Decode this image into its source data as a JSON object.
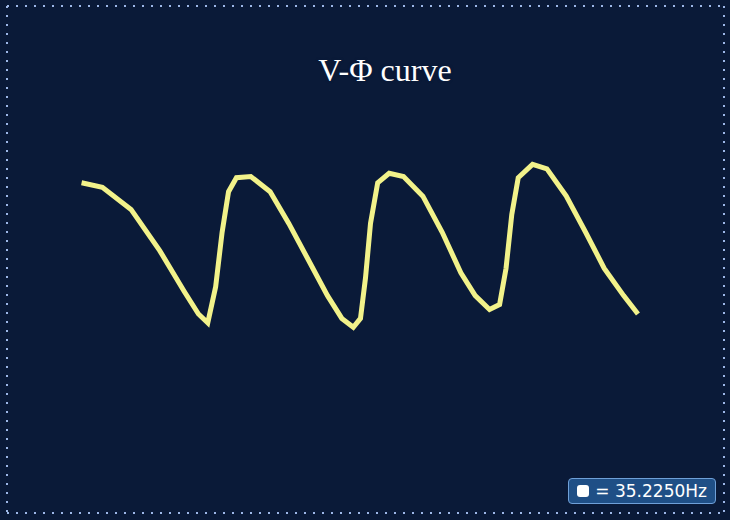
{
  "chart_data": {
    "type": "line",
    "title": "V-Φ curve",
    "annotations": [
      "= 35.2250Hz"
    ],
    "x": [
      1.04,
      1.33,
      1.73,
      2.13,
      2.47,
      2.67,
      2.8,
      2.91,
      3.0,
      3.09,
      3.2,
      3.4,
      3.67,
      3.93,
      4.2,
      4.47,
      4.67,
      4.83,
      4.93,
      5.0,
      5.07,
      5.17,
      5.33,
      5.53,
      5.8,
      6.07,
      6.33,
      6.53,
      6.73,
      6.87,
      6.96,
      7.04,
      7.13,
      7.33,
      7.53,
      7.8,
      8.07,
      8.33,
      8.6,
      8.8
    ],
    "values": [
      5.21,
      5.14,
      4.79,
      4.14,
      3.5,
      3.14,
      3.0,
      3.57,
      4.43,
      5.07,
      5.29,
      5.31,
      5.07,
      4.57,
      4.0,
      3.43,
      3.07,
      2.93,
      3.07,
      3.71,
      4.57,
      5.21,
      5.36,
      5.31,
      5.0,
      4.43,
      3.79,
      3.43,
      3.21,
      3.29,
      3.86,
      4.71,
      5.29,
      5.5,
      5.43,
      5.0,
      4.43,
      3.86,
      3.43,
      3.14
    ],
    "color": "#f2f28a",
    "xlim": [
      0,
      10
    ],
    "ylim": [
      0,
      8
    ],
    "xticks": [
      0,
      1,
      2,
      3,
      4,
      5,
      6,
      7,
      8,
      9,
      10
    ],
    "yticks": [
      0,
      1,
      2,
      3,
      4,
      5,
      6,
      7,
      8
    ],
    "grid": true,
    "tick_labels": false
  }
}
